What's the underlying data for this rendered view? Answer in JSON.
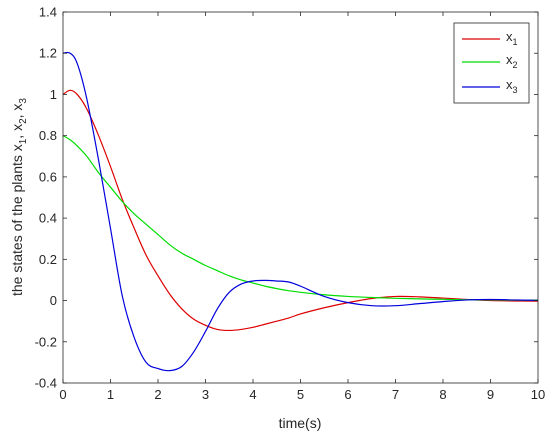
{
  "chart_data": {
    "type": "line",
    "xlabel": "time(s)",
    "ylabel_parts": [
      "the states of the plants x",
      "1",
      ", x",
      "2",
      ", x",
      "3"
    ],
    "xlim": [
      0,
      10
    ],
    "ylim": [
      -0.4,
      1.4
    ],
    "xticks": [
      "0",
      "1",
      "2",
      "3",
      "4",
      "5",
      "6",
      "7",
      "8",
      "9",
      "10"
    ],
    "yticks": [
      "-0.4",
      "-0.2",
      "0",
      "0.2",
      "0.4",
      "0.6",
      "0.8",
      "1",
      "1.2",
      "1.4"
    ],
    "grid": false,
    "legend_position": "top-right",
    "x": [
      0,
      0.15,
      0.3,
      0.5,
      0.75,
      1.0,
      1.25,
      1.5,
      1.75,
      2.0,
      2.25,
      2.5,
      2.75,
      3.0,
      3.25,
      3.5,
      3.75,
      4.0,
      4.25,
      4.5,
      4.75,
      5.0,
      5.5,
      6.0,
      6.5,
      7.0,
      7.5,
      8.0,
      8.5,
      9.0,
      9.5,
      10.0
    ],
    "series": [
      {
        "name": "x",
        "sub": "1",
        "color": "#dd0000",
        "values": [
          1.0,
          1.02,
          1.0,
          0.93,
          0.8,
          0.65,
          0.49,
          0.35,
          0.22,
          0.12,
          0.03,
          -0.04,
          -0.09,
          -0.12,
          -0.14,
          -0.145,
          -0.14,
          -0.13,
          -0.115,
          -0.1,
          -0.085,
          -0.065,
          -0.035,
          -0.01,
          0.01,
          0.02,
          0.018,
          0.012,
          0.005,
          0.0,
          -0.002,
          -0.003
        ]
      },
      {
        "name": "x",
        "sub": "2",
        "color": "#00dd00",
        "values": [
          0.8,
          0.78,
          0.75,
          0.7,
          0.62,
          0.55,
          0.48,
          0.42,
          0.37,
          0.32,
          0.27,
          0.23,
          0.2,
          0.17,
          0.145,
          0.12,
          0.1,
          0.085,
          0.07,
          0.058,
          0.048,
          0.04,
          0.028,
          0.02,
          0.015,
          0.011,
          0.008,
          0.006,
          0.004,
          0.003,
          0.002,
          0.002
        ]
      },
      {
        "name": "x",
        "sub": "3",
        "color": "#0000dd",
        "values": [
          1.2,
          1.2,
          1.15,
          0.98,
          0.68,
          0.35,
          0.02,
          -0.18,
          -0.3,
          -0.33,
          -0.34,
          -0.32,
          -0.25,
          -0.15,
          -0.04,
          0.04,
          0.08,
          0.095,
          0.098,
          0.095,
          0.09,
          0.07,
          0.02,
          -0.01,
          -0.025,
          -0.025,
          -0.015,
          -0.005,
          0.003,
          0.005,
          0.003,
          0.001
        ]
      }
    ]
  }
}
